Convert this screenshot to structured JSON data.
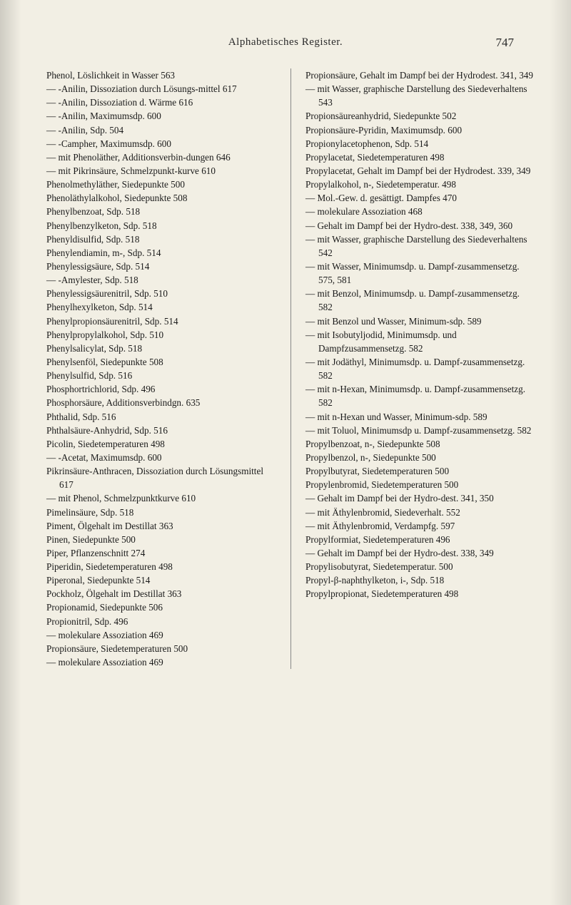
{
  "header": {
    "title": "Alphabetisches Register.",
    "page_number": "747"
  },
  "left_column": [
    {
      "text": "Phenol, Löslichkeit in Wasser 563",
      "type": "entry"
    },
    {
      "text": "— -Anilin, Dissoziation durch Lösungs-mittel 617",
      "type": "entry"
    },
    {
      "text": "— -Anilin, Dissoziation d. Wärme 616",
      "type": "entry"
    },
    {
      "text": "— -Anilin, Maximumsdp. 600",
      "type": "entry"
    },
    {
      "text": "— -Anilin, Sdp. 504",
      "type": "entry"
    },
    {
      "text": "— -Campher, Maximumsdp. 600",
      "type": "entry"
    },
    {
      "text": "— mit Phenoläther, Additionsverbin-dungen 646",
      "type": "entry"
    },
    {
      "text": "— mit Pikrinsäure, Schmelzpunkt-kurve 610",
      "type": "entry"
    },
    {
      "text": "Phenolmethyläther, Siedepunkte 500",
      "type": "entry"
    },
    {
      "text": "Phenoläthylalkohol, Siedepunkte 508",
      "type": "entry"
    },
    {
      "text": "Phenylbenzoat, Sdp. 518",
      "type": "entry"
    },
    {
      "text": "Phenylbenzylketon, Sdp. 518",
      "type": "entry"
    },
    {
      "text": "Phenyldisulfid, Sdp. 518",
      "type": "entry"
    },
    {
      "text": "Phenylendiamin, m-, Sdp. 514",
      "type": "entry"
    },
    {
      "text": "Phenylessigsäure, Sdp. 514",
      "type": "entry"
    },
    {
      "text": "— -Amylester, Sdp. 518",
      "type": "entry"
    },
    {
      "text": "Phenylessigsäurenitril, Sdp. 510",
      "type": "entry"
    },
    {
      "text": "Phenylhexylketon, Sdp. 514",
      "type": "entry"
    },
    {
      "text": "Phenylpropionsäurenitril, Sdp. 514",
      "type": "entry"
    },
    {
      "text": "Phenylpropylalkohol, Sdp. 510",
      "type": "entry"
    },
    {
      "text": "Phenylsalicylat, Sdp. 518",
      "type": "entry"
    },
    {
      "text": "Phenylsenföl, Siedepunkte 508",
      "type": "entry"
    },
    {
      "text": "Phenylsulfid, Sdp. 516",
      "type": "entry"
    },
    {
      "text": "Phosphortrichlorid, Sdp. 496",
      "type": "entry"
    },
    {
      "text": "Phosphorsäure, Additionsverbindgn. 635",
      "type": "entry"
    },
    {
      "text": "Phthalid, Sdp. 516",
      "type": "entry"
    },
    {
      "text": "Phthalsäure-Anhydrid, Sdp. 516",
      "type": "entry"
    },
    {
      "text": "Picolin, Siedetemperaturen 498",
      "type": "entry"
    },
    {
      "text": "— -Acetat, Maximumsdp. 600",
      "type": "entry"
    },
    {
      "text": "Pikrinsäure-Anthracen, Dissoziation durch Lösungsmittel 617",
      "type": "entry"
    },
    {
      "text": "— mit Phenol, Schmelzpunktkurve 610",
      "type": "entry"
    },
    {
      "text": "Pimelinsäure, Sdp. 518",
      "type": "entry"
    },
    {
      "text": "Piment, Ölgehalt im Destillat 363",
      "type": "entry"
    },
    {
      "text": "Pinen, Siedepunkte 500",
      "type": "entry"
    },
    {
      "text": "Piper, Pflanzenschnitt 274",
      "type": "entry"
    },
    {
      "text": "Piperidin, Siedetemperaturen 498",
      "type": "entry"
    },
    {
      "text": "Piperonal, Siedepunkte 514",
      "type": "entry"
    },
    {
      "text": "Pockholz, Ölgehalt im Destillat 363",
      "type": "entry"
    },
    {
      "text": "Propionamid, Siedepunkte 506",
      "type": "entry"
    },
    {
      "text": "Propionitril, Sdp. 496",
      "type": "entry"
    },
    {
      "text": "— molekulare Assoziation 469",
      "type": "entry"
    },
    {
      "text": "Propionsäure, Siedetemperaturen 500",
      "type": "entry"
    },
    {
      "text": "— molekulare Assoziation 469",
      "type": "entry"
    }
  ],
  "right_column": [
    {
      "text": "Propionsäure, Gehalt im Dampf bei der Hydrodest. 341, 349",
      "type": "entry"
    },
    {
      "text": "— mit Wasser, graphische Darstellung des Siedeverhaltens 543",
      "type": "entry"
    },
    {
      "text": "Propionsäureanhydrid, Siedepunkte 502",
      "type": "entry"
    },
    {
      "text": "Propionsäure-Pyridin, Maximumsdp. 600",
      "type": "entry"
    },
    {
      "text": "Propionylacetophenon, Sdp. 514",
      "type": "entry"
    },
    {
      "text": "Propylacetat, Siedetemperaturen 498",
      "type": "entry"
    },
    {
      "text": "Propylacetat, Gehalt im Dampf bei der Hydrodest. 339, 349",
      "type": "entry"
    },
    {
      "text": "Propylalkohol, n-, Siedetemperatur. 498",
      "type": "entry"
    },
    {
      "text": "— Mol.-Gew. d. gesättigt. Dampfes 470",
      "type": "entry"
    },
    {
      "text": "— molekulare Assoziation 468",
      "type": "entry"
    },
    {
      "text": "— Gehalt im Dampf bei der Hydro-dest. 338, 349, 360",
      "type": "entry"
    },
    {
      "text": "— mit Wasser, graphische Darstellung des Siedeverhaltens 542",
      "type": "entry"
    },
    {
      "text": "— mit Wasser, Minimumsdp. u. Dampf-zusammensetzg. 575, 581",
      "type": "entry"
    },
    {
      "text": "— mit Benzol, Minimumsdp. u. Dampf-zusammensetzg. 582",
      "type": "entry"
    },
    {
      "text": "— mit Benzol und Wasser, Minimum-sdp. 589",
      "type": "entry"
    },
    {
      "text": "— mit Isobutyljodid, Minimumsdp. und Dampfzusammensetzg. 582",
      "type": "entry"
    },
    {
      "text": "— mit Jodäthyl, Minimumsdp. u. Dampf-zusammensetzg. 582",
      "type": "entry"
    },
    {
      "text": "— mit n-Hexan, Minimumsdp. u. Dampf-zusammensetzg. 582",
      "type": "entry"
    },
    {
      "text": "— mit n-Hexan und Wasser, Minimum-sdp. 589",
      "type": "entry"
    },
    {
      "text": "— mit Toluol, Minimumsdp u. Dampf-zusammensetzg. 582",
      "type": "entry"
    },
    {
      "text": "Propylbenzoat, n-, Siedepunkte 508",
      "type": "entry"
    },
    {
      "text": "Propylbenzol, n-, Siedepunkte 500",
      "type": "entry"
    },
    {
      "text": "Propylbutyrat, Siedetemperaturen 500",
      "type": "entry"
    },
    {
      "text": "Propylenbromid, Siedetemperaturen 500",
      "type": "entry"
    },
    {
      "text": "— Gehalt im Dampf bei der Hydro-dest. 341, 350",
      "type": "entry"
    },
    {
      "text": "— mit Äthylenbromid, Siedeverhalt. 552",
      "type": "entry"
    },
    {
      "text": "— mit Äthylenbromid, Verdampfg. 597",
      "type": "entry"
    },
    {
      "text": "Propylformiat, Siedetemperaturen 496",
      "type": "entry"
    },
    {
      "text": "— Gehalt im Dampf bei der Hydro-dest. 338, 349",
      "type": "entry"
    },
    {
      "text": "Propylisobutyrat, Siedetemperatur. 500",
      "type": "entry"
    },
    {
      "text": "Propyl-β-naphthylketon, i-, Sdp. 518",
      "type": "entry"
    },
    {
      "text": "Propylpropionat, Siedetemperaturen 498",
      "type": "entry"
    }
  ],
  "styling": {
    "page_bg": "#f2efe4",
    "text_color": "#1a1a1a",
    "font_size_body": 13.2,
    "font_size_header": 15,
    "font_size_page_num": 17,
    "line_height": 1.45,
    "divider_color": "#888"
  }
}
